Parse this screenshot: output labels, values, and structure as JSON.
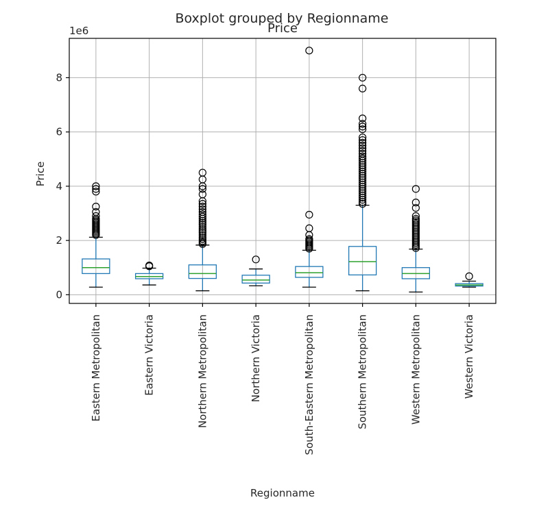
{
  "chart_data": {
    "type": "boxplot",
    "suptitle": "Boxplot grouped by Regionname",
    "title": "Price",
    "xlabel": "Regionname",
    "ylabel": "Price",
    "y_offset_label": "1e6",
    "y_scale": 1000000,
    "ylim": [
      -320000,
      9450000
    ],
    "yticks": [
      0,
      2000000,
      4000000,
      6000000,
      8000000
    ],
    "ytick_labels": [
      "0",
      "2",
      "4",
      "6",
      "8"
    ],
    "grid": true,
    "colors": {
      "box": "#1f77b4",
      "median": "#2ca02c",
      "cap": "#000000",
      "flier": "#000000"
    },
    "categories": [
      "Eastern Metropolitan",
      "Eastern Victoria",
      "Northern Metropolitan",
      "Northern Victoria",
      "South-Eastern Metropolitan",
      "Southern Metropolitan",
      "Western Metropolitan",
      "Western Victoria"
    ],
    "boxes": [
      {
        "whislo": 280000,
        "q1": 780000,
        "med": 1000000,
        "q3": 1320000,
        "whishi": 2120000,
        "fliers": [
          2200000,
          2250000,
          2300000,
          2350000,
          2400000,
          2450000,
          2500000,
          2550000,
          2600000,
          2650000,
          2700000,
          2750000,
          2800000,
          2900000,
          3050000,
          3250000,
          3800000,
          3900000,
          4000000
        ]
      },
      {
        "whislo": 360000,
        "q1": 590000,
        "med": 670000,
        "q3": 780000,
        "whishi": 980000,
        "fliers": [
          1050000,
          1080000
        ]
      },
      {
        "whislo": 145000,
        "q1": 600000,
        "med": 780000,
        "q3": 1100000,
        "whishi": 1830000,
        "fliers": [
          1870000,
          1920000,
          1980000,
          2050000,
          2120000,
          2200000,
          2280000,
          2350000,
          2420000,
          2500000,
          2580000,
          2650000,
          2720000,
          2800000,
          2880000,
          2960000,
          3050000,
          3150000,
          3250000,
          3350000,
          3450000,
          3700000,
          3900000,
          4000000,
          4250000,
          4500000
        ]
      },
      {
        "whislo": 330000,
        "q1": 430000,
        "med": 540000,
        "q3": 720000,
        "whishi": 950000,
        "fliers": [
          1300000
        ]
      },
      {
        "whislo": 280000,
        "q1": 640000,
        "med": 810000,
        "q3": 1040000,
        "whishi": 1640000,
        "fliers": [
          1700000,
          1750000,
          1800000,
          1850000,
          1900000,
          1950000,
          2000000,
          2050000,
          2200000,
          2450000,
          2950000,
          9000000
        ]
      },
      {
        "whislo": 145000,
        "q1": 730000,
        "med": 1220000,
        "q3": 1780000,
        "whishi": 3300000,
        "fliers": [
          3350000,
          3420000,
          3500000,
          3580000,
          3660000,
          3740000,
          3820000,
          3900000,
          3980000,
          4060000,
          4140000,
          4220000,
          4300000,
          4380000,
          4460000,
          4540000,
          4620000,
          4700000,
          4780000,
          4860000,
          4940000,
          5020000,
          5100000,
          5200000,
          5300000,
          5400000,
          5500000,
          5600000,
          5700000,
          5800000,
          6100000,
          6200000,
          6300000,
          6500000,
          7600000,
          8000000
        ]
      },
      {
        "whislo": 100000,
        "q1": 590000,
        "med": 780000,
        "q3": 1000000,
        "whishi": 1680000,
        "fliers": [
          1720000,
          1780000,
          1840000,
          1900000,
          1960000,
          2020000,
          2080000,
          2140000,
          2200000,
          2260000,
          2320000,
          2380000,
          2440000,
          2500000,
          2560000,
          2620000,
          2680000,
          2740000,
          2800000,
          2900000,
          3200000,
          3400000,
          3900000
        ]
      },
      {
        "whislo": 280000,
        "q1": 320000,
        "med": 360000,
        "q3": 410000,
        "whishi": 500000,
        "fliers": [
          680000
        ]
      }
    ]
  }
}
